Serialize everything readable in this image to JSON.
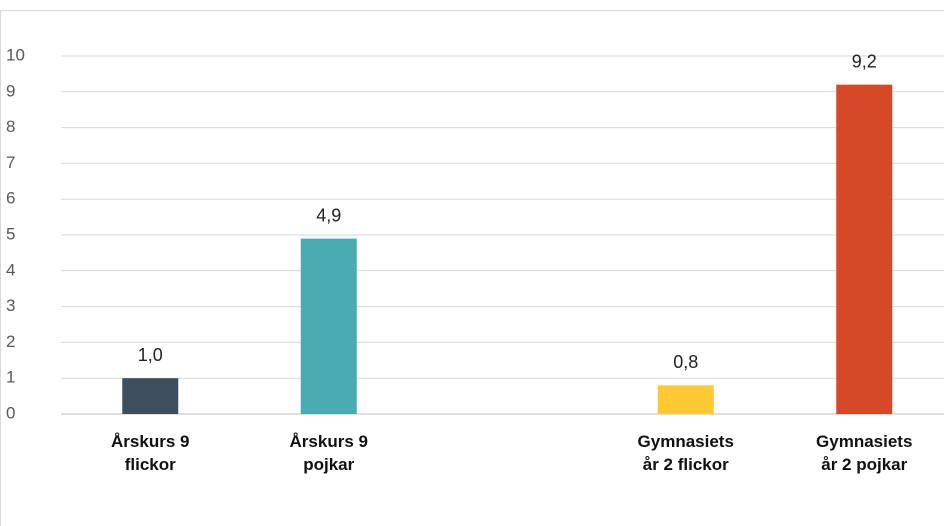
{
  "chart_data": {
    "type": "bar",
    "categories": [
      "Årskurs 9 flickor",
      "Årskurs 9 pojkar",
      null,
      "Gymnasiets år 2 flickor",
      "Gymnasiets år 2 pojkar"
    ],
    "values": [
      1.0,
      4.9,
      null,
      0.8,
      9.2
    ],
    "value_labels": [
      "1,0",
      "4,9",
      null,
      "0,8",
      "9,2"
    ],
    "colors": [
      "#3d4f5e",
      "#4aabb3",
      null,
      "#ffc933",
      "#d54828"
    ],
    "ylim": [
      0,
      10
    ],
    "yticks": [
      0,
      1,
      2,
      3,
      4,
      5,
      6,
      7,
      8,
      9,
      10
    ],
    "grid": true
  }
}
